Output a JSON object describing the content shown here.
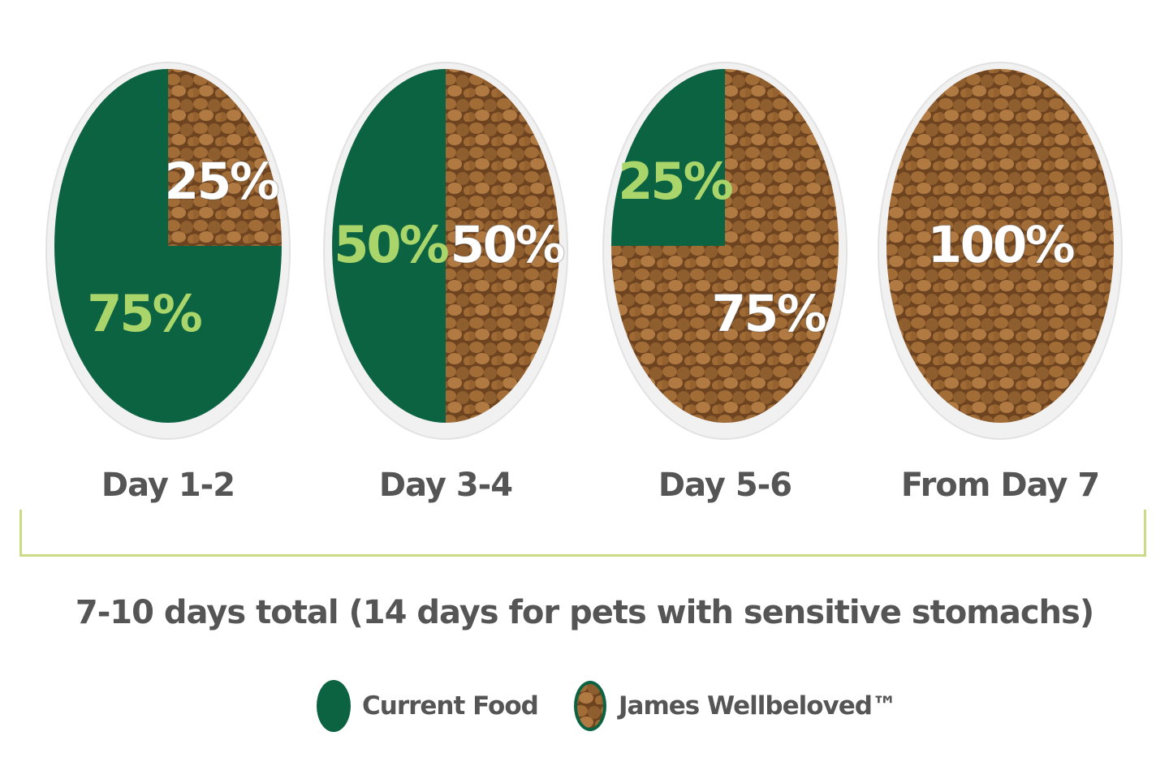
{
  "colors": {
    "current_food": "#0b6342",
    "james_wellbeloved": "#8f5f2c",
    "current_label": "#a9d56b",
    "new_label": "#ffffff",
    "bracket": "#c9db86",
    "text": "#555555"
  },
  "chart_data": {
    "type": "pie",
    "series_names": [
      "Current Food",
      "James Wellbeloved"
    ],
    "pies": [
      {
        "label": "Day 1-2",
        "current_food": 75,
        "james_wellbeloved": 25,
        "current_text": "75%",
        "new_text": "25%"
      },
      {
        "label": "Day 3-4",
        "current_food": 50,
        "james_wellbeloved": 50,
        "current_text": "50%",
        "new_text": "50%"
      },
      {
        "label": "Day 5-6",
        "current_food": 25,
        "james_wellbeloved": 75,
        "current_text": "25%",
        "new_text": "75%"
      },
      {
        "label": "From Day 7",
        "current_food": 0,
        "james_wellbeloved": 100,
        "current_text": "",
        "new_text": "100%"
      }
    ]
  },
  "total_text": "7-10 days total (14 days for pets with sensitive stomachs)",
  "legend": [
    {
      "label": "Current Food",
      "swatch": "green-circle"
    },
    {
      "label": "James Wellbeloved™",
      "swatch": "kibble-circle"
    }
  ]
}
